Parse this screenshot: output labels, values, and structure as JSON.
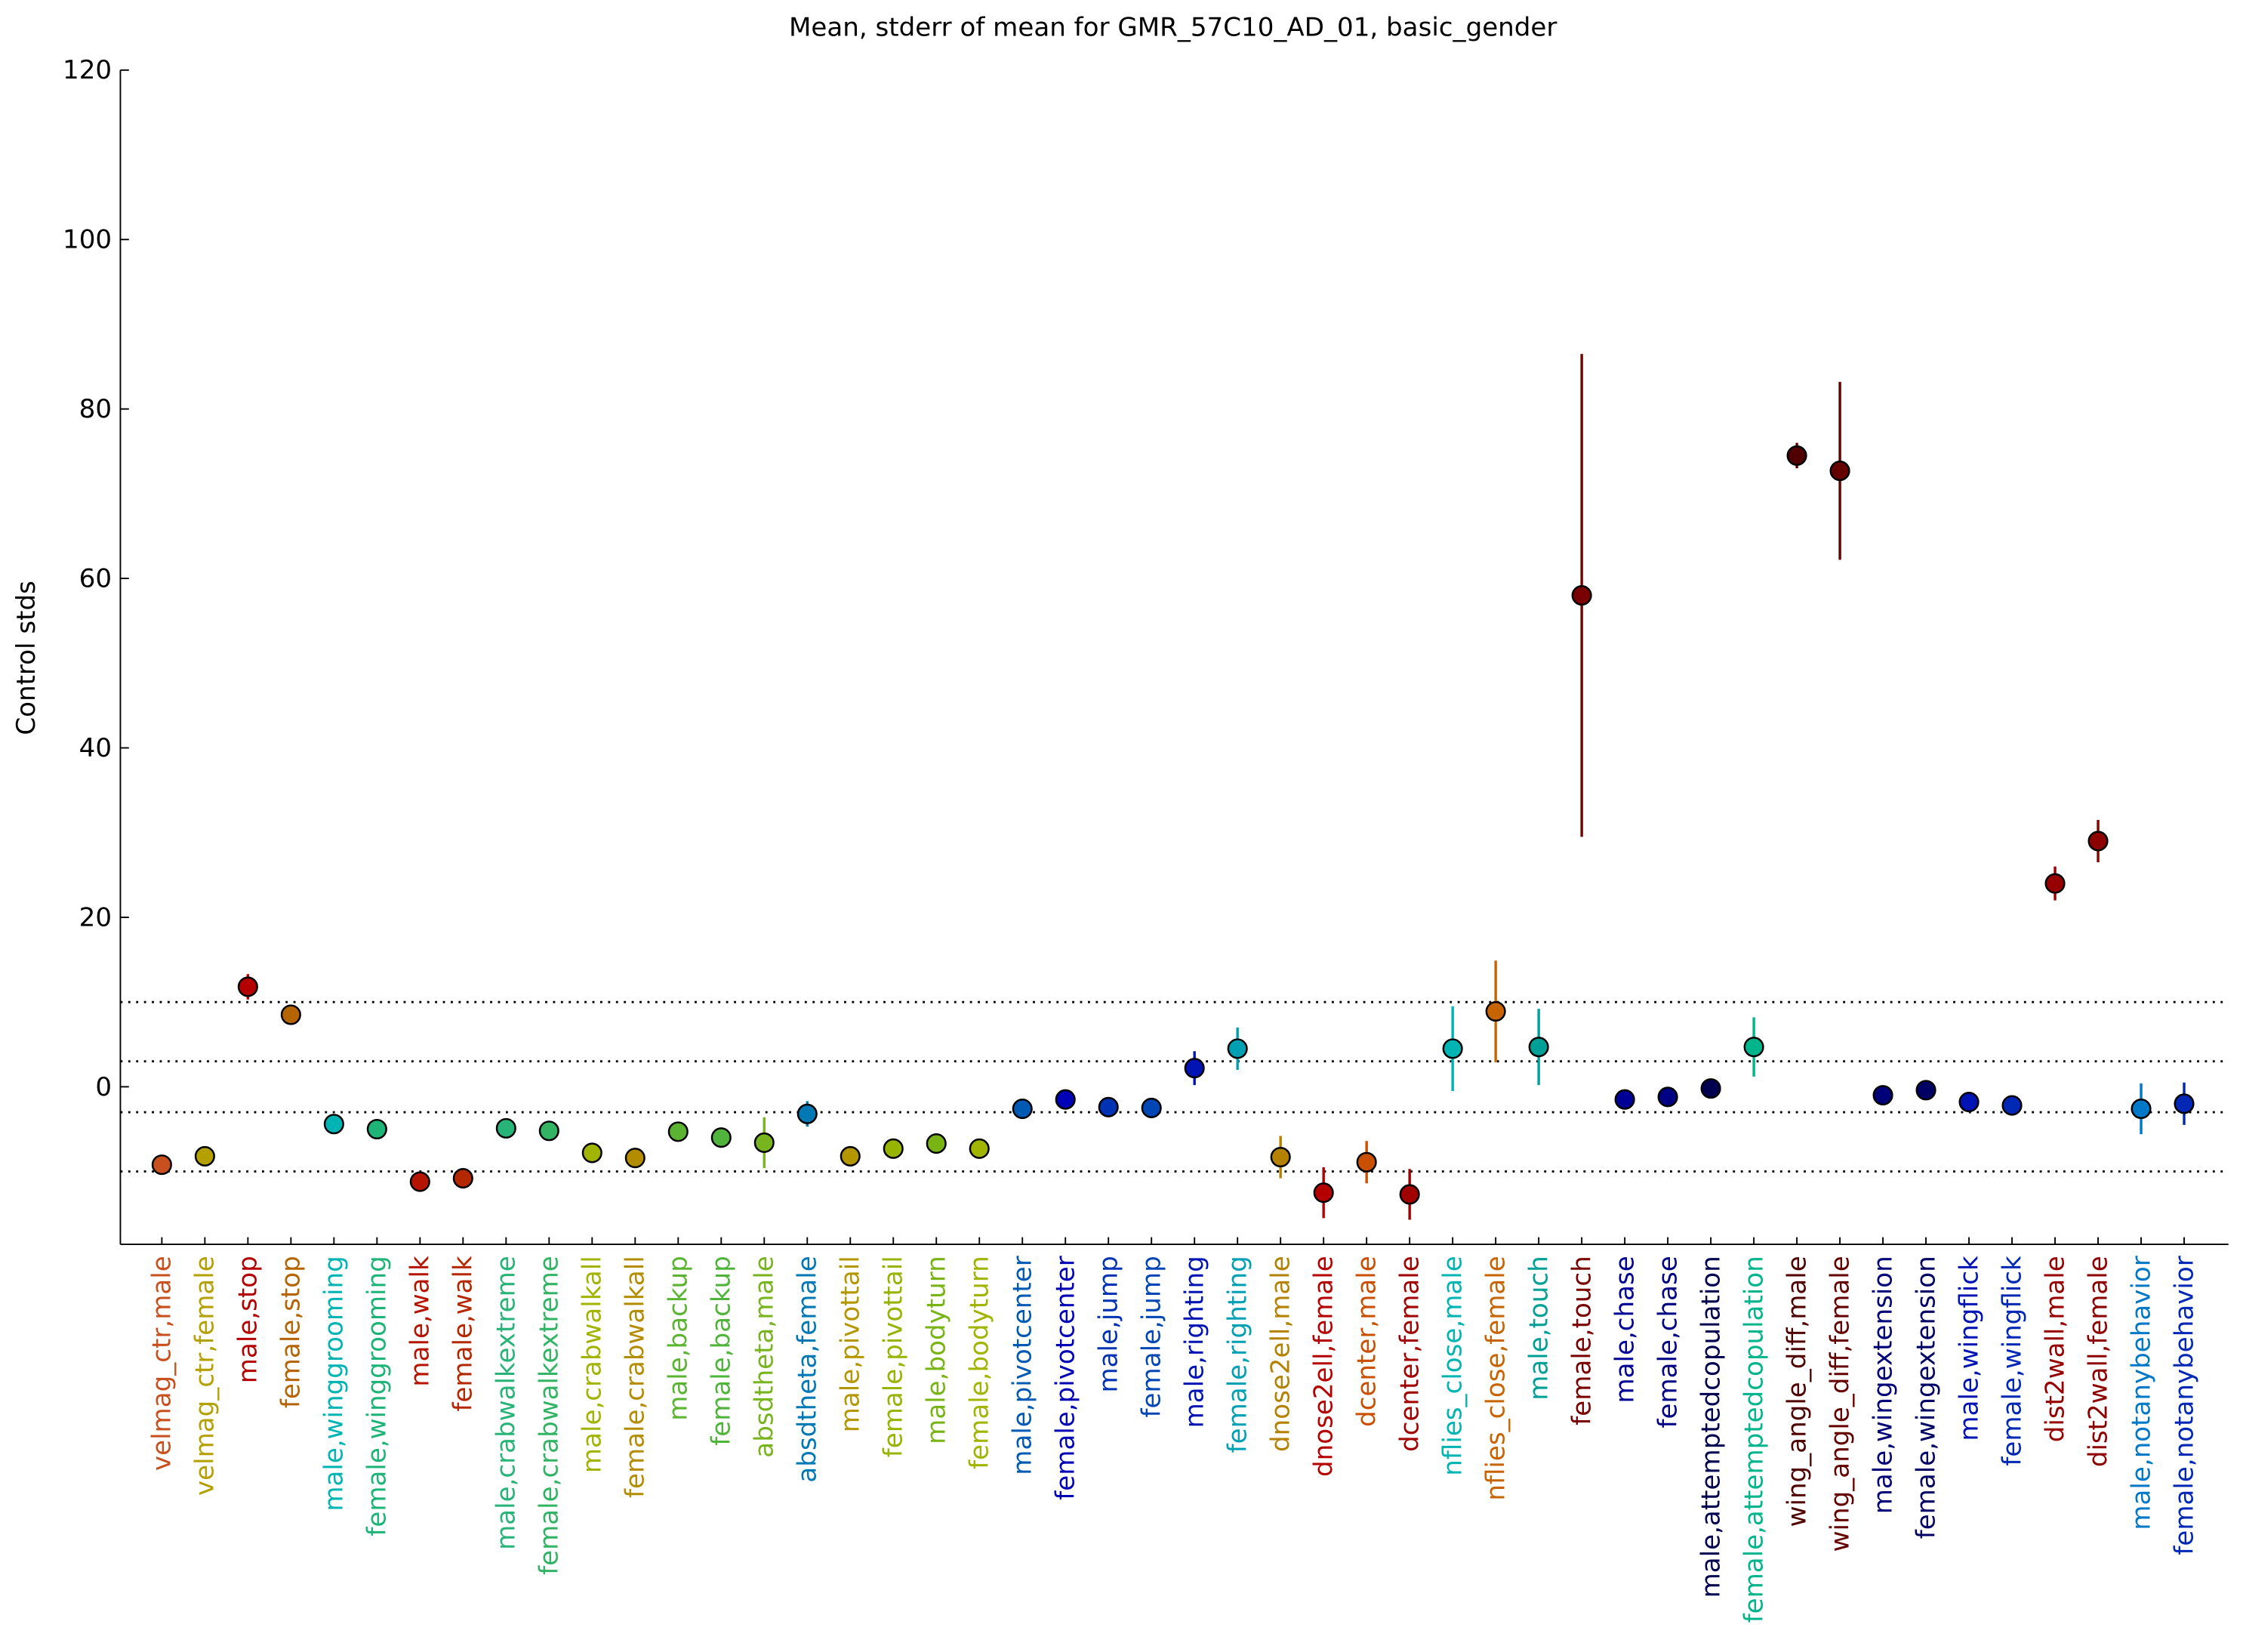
{
  "chart_data": {
    "type": "errorbar",
    "title": "Mean, stderr of mean for GMR_57C10_AD_01, basic_gender",
    "y_label": "Control stds",
    "categories": [
      "velmag_ctr,male",
      "velmag_ctr,female",
      "male,stop",
      "female,stop",
      "male,winggrooming",
      "female,winggrooming",
      "male,walk",
      "female,walk",
      "male,crabwalkextreme",
      "female,crabwalkextreme",
      "male,crabwalkall",
      "female,crabwalkall",
      "male,backup",
      "female,backup",
      "absdtheta,male",
      "absdtheta,female",
      "male,pivottail",
      "female,pivottail",
      "male,bodyturn",
      "female,bodyturn",
      "male,pivotcenter",
      "female,pivotcenter",
      "male,jump",
      "female,jump",
      "male,righting",
      "female,righting",
      "dnose2ell,male",
      "dnose2ell,female",
      "dcenter,male",
      "dcenter,female",
      "nflies_close,male",
      "nflies_close,female",
      "male,touch",
      "female,touch",
      "male,chase",
      "female,chase",
      "male,attemptedcopulation",
      "female,attemptedcopulation",
      "wing_angle_diff,male",
      "wing_angle_diff,female",
      "male,wingextension",
      "female,wingextension",
      "male,wingflick",
      "female,wingflick",
      "dist2wall,male",
      "dist2wall,female",
      "male,notanybehavior",
      "female,notanybehavior"
    ],
    "values": [
      -9.2,
      -8.2,
      11.8,
      8.5,
      -4.4,
      -5,
      -11.2,
      -10.8,
      -4.9,
      -5.2,
      -7.8,
      -8.4,
      -5.3,
      -6,
      -6.6,
      -3.2,
      -8.2,
      -7.3,
      -6.7,
      -7.3,
      -2.6,
      -1.5,
      -2.4,
      -2.5,
      2.2,
      4.5,
      -8.3,
      -12.5,
      -8.9,
      -12.7,
      4.5,
      8.9,
      4.7,
      58,
      -1.5,
      -1.2,
      -0.2,
      4.7,
      74.5,
      72.7,
      -1,
      -0.4,
      -1.8,
      -2.2,
      24,
      29,
      -2.6,
      -2
    ],
    "errors": [
      0.5,
      0.5,
      1.5,
      1,
      0.3,
      0.3,
      0.5,
      0.5,
      0.3,
      0.3,
      0.3,
      0.3,
      0.3,
      0.3,
      3,
      1.5,
      0.3,
      0.3,
      0.3,
      0.3,
      0.3,
      0.3,
      0.3,
      0.3,
      2,
      2.5,
      2.5,
      3,
      2.5,
      3,
      5,
      6,
      4.5,
      28.5,
      0.3,
      0.3,
      0.3,
      3.5,
      1.5,
      10.5,
      0.3,
      0.3,
      0.3,
      0.3,
      2,
      2.5,
      3,
      2.5
    ],
    "colors": [
      "#c8501e",
      "#b4a000",
      "#b40000",
      "#b46400",
      "#00b4b4",
      "#1eb478",
      "#b41400",
      "#b42800",
      "#28b478",
      "#32b464",
      "#a0b400",
      "#b48c00",
      "#5ab432",
      "#50b43c",
      "#78b41e",
      "#0078b4",
      "#b49600",
      "#96b400",
      "#78b414",
      "#a0b400",
      "#005ab4",
      "#0000b4",
      "#0032b4",
      "#0046b4",
      "#0014b4",
      "#00a0b4",
      "#b48200",
      "#b40000",
      "#c85000",
      "#a00000",
      "#00b4b4",
      "#c86400",
      "#00a096",
      "#780000",
      "#000096",
      "#000082",
      "#000050",
      "#00b48c",
      "#500000",
      "#640000",
      "#000078",
      "#000064",
      "#0014b4",
      "#0028b4",
      "#960000",
      "#8c0000",
      "#0078c8",
      "#0028b4"
    ],
    "ylim": [
      -18.6,
      120
    ],
    "yticks": [
      0,
      20,
      40,
      60,
      80,
      100,
      120
    ],
    "reference_lines": [
      10,
      3,
      -3,
      -10
    ]
  }
}
